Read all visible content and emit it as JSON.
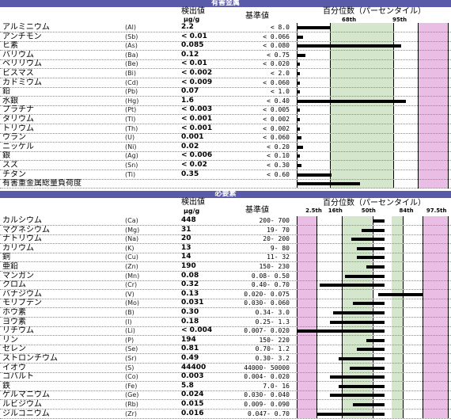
{
  "section1": {
    "title": "有害金属",
    "header": {
      "col_value": "検出値",
      "col_unit": "μg/g",
      "col_ref": "基準値",
      "col_chart": "百分位数（パーセンタイル）",
      "p68": "68th",
      "p95": "95th"
    },
    "rows": [
      {
        "name": "アルミニウム",
        "sym": "(Al)",
        "val": "2.2",
        "ref": "<   8.0",
        "pct": 0.22
      },
      {
        "name": "アンチモン",
        "sym": "(Sb)",
        "val": "< 0.01",
        "ref": "< 0.066",
        "pct": 0.04
      },
      {
        "name": "ヒ素",
        "sym": "(As)",
        "val": "0.085",
        "ref": "< 0.080",
        "pct": 0.69
      },
      {
        "name": "バリウム",
        "sym": "(Ba)",
        "val": "0.12",
        "ref": "<  0.75",
        "pct": 0.06
      },
      {
        "name": "ベリリウム",
        "sym": "(Be)",
        "val": "< 0.01",
        "ref": "< 0.020",
        "pct": 0.02
      },
      {
        "name": "ビスマス",
        "sym": "(Bi)",
        "val": "< 0.002",
        "ref": "<   2.0",
        "pct": 0.02
      },
      {
        "name": "カドミウム",
        "sym": "(Cd)",
        "val": "< 0.009",
        "ref": "< 0.060",
        "pct": 0.02
      },
      {
        "name": "鉛",
        "sym": "(Pb)",
        "val": "0.07",
        "ref": "<   1.0",
        "pct": 0.02
      },
      {
        "name": "水銀",
        "sym": "(Hg)",
        "val": "1.6",
        "ref": "<  0.40",
        "pct": 0.72
      },
      {
        "name": "プラチナ",
        "sym": "(Pt)",
        "val": "< 0.003",
        "ref": "< 0.005",
        "pct": 0.02
      },
      {
        "name": "タリウム",
        "sym": "(Tl)",
        "val": "< 0.001",
        "ref": "< 0.002",
        "pct": 0.02
      },
      {
        "name": "トリウム",
        "sym": "(Th)",
        "val": "< 0.001",
        "ref": "< 0.002",
        "pct": 0.02
      },
      {
        "name": "ウラン",
        "sym": "(U)",
        "val": "0.001",
        "ref": "< 0.060",
        "pct": 0.03
      },
      {
        "name": "ニッケル",
        "sym": "(Ni)",
        "val": "0.02",
        "ref": "<  0.20",
        "pct": 0.04
      },
      {
        "name": "銀",
        "sym": "(Ag)",
        "val": "< 0.006",
        "ref": "<  0.10",
        "pct": 0.02
      },
      {
        "name": "スズ",
        "sym": "(Sn)",
        "val": "< 0.02",
        "ref": "<  0.30",
        "pct": 0.03
      },
      {
        "name": "チタン",
        "sym": "(Ti)",
        "val": "0.35",
        "ref": "<  0.60",
        "pct": 0.23
      }
    ],
    "total_label": "有害重金属総量負荷度",
    "total_pct": 0.42
  },
  "section2": {
    "title": "必要素",
    "header": {
      "col_value": "検出値",
      "col_unit": "μg/g",
      "col_ref": "基準値",
      "col_chart": "百分位数（パーセンタイル）",
      "ticks": [
        "2.5th",
        "16th",
        "50th",
        "84th",
        "97.5th"
      ]
    },
    "rows": [
      {
        "name": "カルシウム",
        "sym": "(Ca)",
        "val": "448",
        "ref": "200-    700",
        "from": 0.5,
        "to": 0.58
      },
      {
        "name": "マグネシウム",
        "sym": "(Mg)",
        "val": "31",
        "ref": "19-     70",
        "from": 0.43,
        "to": 0.58
      },
      {
        "name": "ナトリウム",
        "sym": "(Na)",
        "val": "20",
        "ref": "20-    200",
        "from": 0.36,
        "to": 0.58
      },
      {
        "name": "カリウム",
        "sym": "(K)",
        "val": "13",
        "ref": "9-     80",
        "from": 0.4,
        "to": 0.58
      },
      {
        "name": "銅",
        "sym": "(Cu)",
        "val": "14",
        "ref": "11-     32",
        "from": 0.4,
        "to": 0.58
      },
      {
        "name": "亜鉛",
        "sym": "(Zn)",
        "val": "190",
        "ref": "150-    230",
        "from": 0.46,
        "to": 0.58
      },
      {
        "name": "マンガン",
        "sym": "(Mn)",
        "val": "0.08",
        "ref": "0.08-   0.50",
        "from": 0.32,
        "to": 0.58
      },
      {
        "name": "クロム",
        "sym": "(Cr)",
        "val": "0.32",
        "ref": "0.40-   0.70",
        "from": 0.15,
        "to": 0.58
      },
      {
        "name": "バナジウム",
        "sym": "(V)",
        "val": "0.13",
        "ref": "0.020-  0.075",
        "from": 0.54,
        "to": 0.84
      },
      {
        "name": "モリブデン",
        "sym": "(Mo)",
        "val": "0.031",
        "ref": "0.030-  0.060",
        "from": 0.37,
        "to": 0.58
      },
      {
        "name": "ホウ素",
        "sym": "(B)",
        "val": "0.30",
        "ref": "0.34-    3.0",
        "from": 0.24,
        "to": 0.58
      },
      {
        "name": "ヨウ素",
        "sym": "(I)",
        "val": "0.18",
        "ref": "0.25-    1.3",
        "from": 0.22,
        "to": 0.58
      },
      {
        "name": "リチウム",
        "sym": "(Li)",
        "val": "< 0.004",
        "ref": "0.007-  0.020",
        "from": 0.0,
        "to": 0.58
      },
      {
        "name": "リン",
        "sym": "(P)",
        "val": "194",
        "ref": "150-    220",
        "from": 0.46,
        "to": 0.58
      },
      {
        "name": "セレン",
        "sym": "(Se)",
        "val": "0.81",
        "ref": "0.70-    1.2",
        "from": 0.4,
        "to": 0.58
      },
      {
        "name": "ストロンチウム",
        "sym": "(Sr)",
        "val": "0.49",
        "ref": "0.30-    3.2",
        "from": 0.28,
        "to": 0.58
      },
      {
        "name": "イオウ",
        "sym": "(S)",
        "val": "44400",
        "ref": "44000-  50000",
        "from": 0.35,
        "to": 0.58
      },
      {
        "name": "コバルト",
        "sym": "(Co)",
        "val": "0.003",
        "ref": "0.004-  0.020",
        "from": 0.22,
        "to": 0.58
      },
      {
        "name": "鉄",
        "sym": "(Fe)",
        "val": "5.8",
        "ref": "7.0-     16",
        "from": 0.28,
        "to": 0.58
      },
      {
        "name": "ゲルマニウム",
        "sym": "(Ge)",
        "val": "0.024",
        "ref": "0.030-  0.040",
        "from": 0.22,
        "to": 0.58
      },
      {
        "name": "ルビジウム",
        "sym": "(Rb)",
        "val": "0.015",
        "ref": "0.009-  0.090",
        "from": 0.37,
        "to": 0.58
      },
      {
        "name": "ジルコニウム",
        "sym": "(Zr)",
        "val": "0.016",
        "ref": "0.047-   0.70",
        "from": 0.13,
        "to": 0.58
      }
    ]
  },
  "colors": {
    "band": "#5a5ba8",
    "green": "#d4e7cc",
    "pink": "#e9bde4",
    "bar": "#000000"
  }
}
